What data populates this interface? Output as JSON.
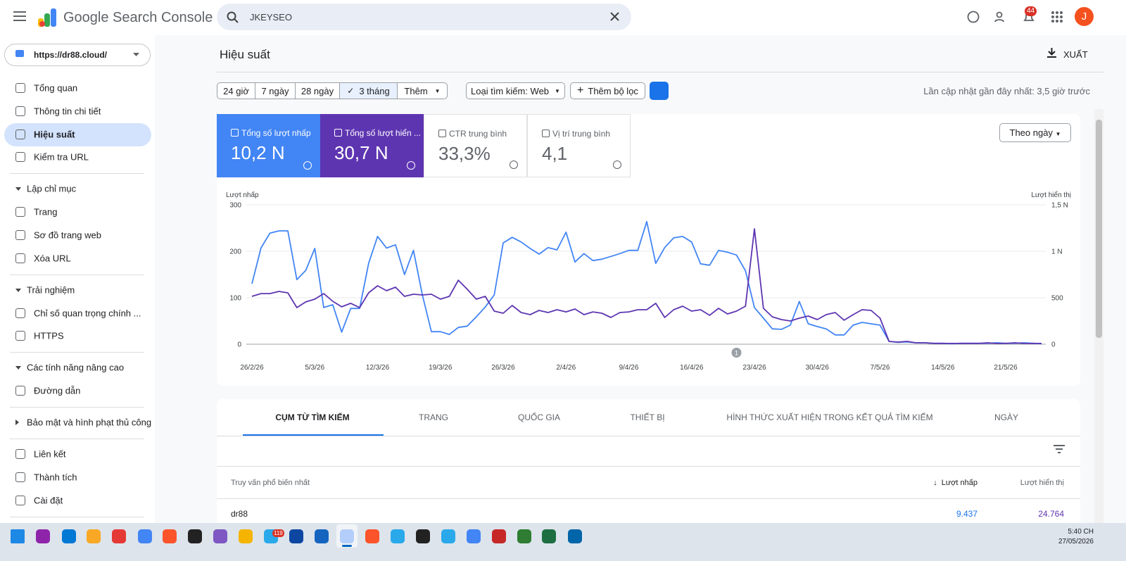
{
  "header": {
    "product": "Google Search Console",
    "search_query": "JKEYSEO",
    "notification_count": "44",
    "avatar": "J"
  },
  "property": "https://dr88.cloud/",
  "nav": {
    "main": [
      "Tổng quan",
      "Thông tin chi tiết",
      "Hiệu suất",
      "Kiểm tra URL"
    ],
    "sections": [
      {
        "heading": "Lập chỉ mục",
        "items": [
          "Trang",
          "Sơ đồ trang web",
          "Xóa URL"
        ]
      },
      {
        "heading": "Trải nghiệm",
        "items": [
          "Chỉ số quan trọng chính ...",
          "HTTPS"
        ]
      },
      {
        "heading": "Các tính năng nâng cao",
        "items": [
          "Đường dẫn"
        ]
      },
      {
        "heading": "Bảo mật và hình phạt thủ công",
        "items": []
      }
    ],
    "footer": [
      "Liên kết",
      "Thành tích",
      "Cài đặt"
    ]
  },
  "page": {
    "title": "Hiệu suất",
    "export": "XUẤT",
    "date_ranges": [
      "24 giờ",
      "7 ngày",
      "28 ngày",
      "3 tháng",
      "Thêm"
    ],
    "search_type": "Loại tìm kiếm: Web",
    "add_filter": "Thêm bộ lọc",
    "last_updated": "Lần cập nhật gần đây nhất: 3,5 giờ trước",
    "granularity": "Theo ngày"
  },
  "metrics": [
    {
      "label": "Tổng số lượt nhấp",
      "value": "10,2 N"
    },
    {
      "label": "Tổng số lượt hiển ...",
      "value": "30,7 N"
    },
    {
      "label": "CTR trung bình",
      "value": "33,3%"
    },
    {
      "label": "Vị trí trung bình",
      "value": "4,1"
    }
  ],
  "chart": {
    "type": "line",
    "y_label": "Lượt nhấp",
    "y2_label": "Lượt hiển thị",
    "categories": [
      "26/2/26",
      null,
      null,
      null,
      null,
      null,
      null,
      "5/3/26",
      null,
      null,
      null,
      null,
      null,
      null,
      "12/3/26",
      null,
      null,
      null,
      null,
      null,
      null,
      "19/3/26",
      null,
      null,
      null,
      null,
      null,
      null,
      "26/3/26",
      null,
      null,
      null,
      null,
      null,
      null,
      "2/4/26",
      null,
      null,
      null,
      null,
      null,
      null,
      "9/4/26",
      null,
      null,
      null,
      null,
      null,
      null,
      "16/4/26",
      null,
      null,
      null,
      null,
      null,
      null,
      "23/4/26",
      null,
      null,
      null,
      null,
      null,
      null,
      "30/4/26",
      null,
      null,
      null,
      null,
      null,
      null,
      "7/5/26",
      null,
      null,
      null,
      null,
      null,
      null,
      "14/5/26",
      null,
      null,
      null,
      null,
      null,
      null,
      "21/5/26",
      null,
      null,
      null,
      null
    ],
    "series": [
      {
        "color": "#4285f4",
        "axis": "y",
        "values": [
          130,
          207,
          239,
          244,
          244,
          139,
          159,
          206,
          79,
          85,
          26,
          77,
          77,
          174,
          232,
          207,
          214,
          150,
          202,
          105,
          27,
          27,
          21,
          36,
          39,
          59,
          80,
          106,
          218,
          230,
          220,
          206,
          194,
          208,
          203,
          241,
          177,
          195,
          180,
          183,
          189,
          195,
          202,
          202,
          264,
          174,
          208,
          229,
          232,
          220,
          173,
          170,
          202,
          198,
          192,
          158,
          79,
          56,
          33,
          32,
          41,
          92,
          44,
          38,
          33,
          20,
          20,
          41,
          47,
          44,
          41,
          6,
          4,
          5,
          3,
          3,
          2,
          2,
          1,
          2,
          2,
          2,
          2,
          3,
          2,
          2,
          3,
          2,
          1
        ]
      },
      {
        "color": "#5e35b1",
        "axis": "y2",
        "values": [
          515,
          545,
          545,
          568,
          553,
          394,
          455,
          485,
          545,
          462,
          402,
          440,
          394,
          553,
          629,
          576,
          614,
          515,
          538,
          530,
          538,
          485,
          515,
          689,
          591,
          485,
          515,
          356,
          333,
          417,
          341,
          318,
          364,
          341,
          371,
          348,
          379,
          318,
          348,
          333,
          288,
          341,
          348,
          371,
          371,
          440,
          288,
          371,
          409,
          356,
          371,
          311,
          386,
          326,
          356,
          409,
          1242,
          386,
          295,
          265,
          250,
          280,
          303,
          265,
          318,
          341,
          258,
          318,
          371,
          364,
          280,
          30,
          23,
          30,
          15,
          15,
          8,
          8,
          8,
          8,
          8,
          8,
          15,
          8,
          8,
          15,
          8,
          8,
          8
        ]
      }
    ],
    "ylim": [
      0,
      300
    ],
    "yticks": [
      0,
      100,
      200,
      300
    ],
    "y2lim": [
      0,
      1500
    ],
    "y2ticks": [
      0,
      500,
      {
        "value": 1000,
        "label": "1 N"
      },
      {
        "value": 1500,
        "label": "1,5 N"
      }
    ],
    "annotation": {
      "index": 54,
      "text": "1"
    },
    "grid": true
  },
  "tabs": [
    "CỤM TỪ TÌM KIẾM",
    "TRANG",
    "QUỐC GIA",
    "THIẾT BỊ",
    "HÌNH THỨC XUẤT HIỆN TRONG KẾT QUẢ TÌM KIẾM",
    "NGÀY"
  ],
  "table": {
    "columns": [
      "Truy vấn phổ biến nhất",
      "Lượt nhấp",
      "Lượt hiển thị"
    ],
    "rows": [
      [
        "dr88",
        "9.437",
        "24.764"
      ]
    ]
  },
  "taskbar": {
    "badge": "119",
    "time": "5:40 CH",
    "date": "27/05/2026"
  }
}
